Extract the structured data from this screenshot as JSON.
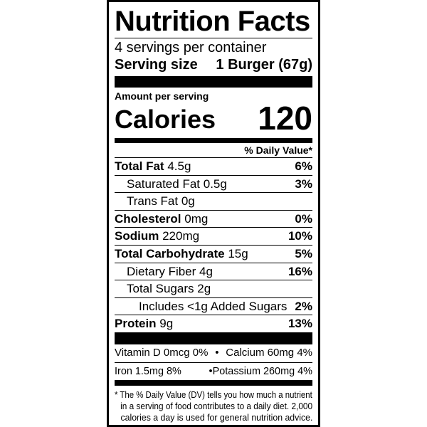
{
  "title": "Nutrition Facts",
  "servings_per_container": "4 servings per container",
  "serving_size": {
    "label": "Serving size",
    "value": "1 Burger (67g)"
  },
  "amount_per_serving": "Amount per serving",
  "calories": {
    "label": "Calories",
    "value": "120"
  },
  "daily_value_header": "% Daily Value*",
  "nutrients": [
    {
      "name": "Total Fat",
      "amount": "4.5g",
      "dv": "6%"
    },
    {
      "name": "Saturated Fat",
      "amount": "0.5g",
      "dv": "3%"
    },
    {
      "name": "Trans Fat",
      "amount": "0g",
      "dv": ""
    },
    {
      "name": "Cholesterol",
      "amount": "0mg",
      "dv": "0%"
    },
    {
      "name": "Sodium",
      "amount": "220mg",
      "dv": "10%"
    },
    {
      "name": "Total Carbohydrate",
      "amount": "15g",
      "dv": "5%"
    },
    {
      "name": "Dietary Fiber",
      "amount": "4g",
      "dv": "16%"
    },
    {
      "name": "Total Sugars",
      "amount": "2g",
      "dv": ""
    },
    {
      "name": "Includes <1g Added Sugars",
      "amount": "",
      "dv": "2%"
    },
    {
      "name": "Protein",
      "amount": "9g",
      "dv": "13%"
    }
  ],
  "vitamins": [
    {
      "left": "Vitamin D 0mcg 0%",
      "right": "Calcium 60mg 4%"
    },
    {
      "left": "Iron 1.5mg 8%",
      "right": "Potassium 260mg 4%"
    }
  ],
  "bullet": "•",
  "footnote": [
    "* The % Daily Value (DV) tells you how much a nutrient",
    "in a serving of food contributes to a daily diet. 2,000",
    "calories a day is used for general nutrition advice."
  ]
}
